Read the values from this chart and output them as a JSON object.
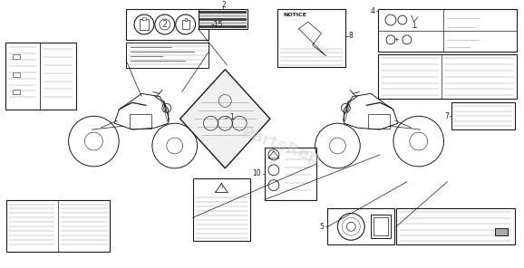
{
  "bg_color": "#ffffff",
  "lc": "#1a1a1a",
  "mlc": "#999999",
  "dlc": "#444444",
  "fig_width": 5.78,
  "fig_height": 2.96,
  "dpi": 100
}
